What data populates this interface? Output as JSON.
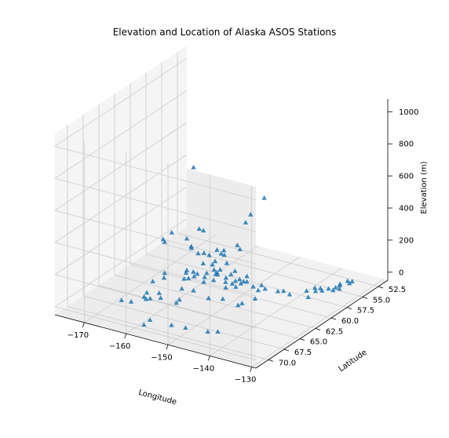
{
  "chart_data": {
    "type": "scatter",
    "title": "Elevation and Location of Alaska ASOS Stations",
    "xlabel": "Longitude",
    "ylabel": "Latitude",
    "zlabel": "Elevation (m)",
    "xlim": [
      -177,
      -129
    ],
    "ylim": [
      51,
      72
    ],
    "zlim": [
      -50,
      1080
    ],
    "xticks": [
      -170,
      -160,
      -150,
      -140,
      -130
    ],
    "yticks": [
      52.5,
      55.0,
      57.5,
      60.0,
      62.5,
      65.0,
      67.5,
      70.0
    ],
    "zticks": [
      0,
      200,
      400,
      600,
      800,
      1000
    ],
    "xtick_labels": [
      "−170",
      "−160",
      "−150",
      "−140",
      "−130"
    ],
    "ytick_labels": [
      "52.5",
      "55.0",
      "57.5",
      "60.0",
      "62.5",
      "65.0",
      "67.5",
      "70.0"
    ],
    "ztick_labels": [
      "0",
      "200",
      "400",
      "600",
      "800",
      "1000"
    ],
    "marker": "triangle",
    "color": "#1f77b4",
    "grid": true,
    "legend": "none",
    "points": [
      [
        -175.0,
        56.1,
        20
      ],
      [
        -173.9,
        56.6,
        25
      ],
      [
        -172.8,
        56.2,
        80
      ],
      [
        -172.1,
        52.3,
        6
      ],
      [
        -170.8,
        52.5,
        10
      ],
      [
        -169.5,
        56.0,
        60
      ],
      [
        -165.2,
        62.5,
        15
      ],
      [
        -168.0,
        56.3,
        30
      ],
      [
        -166.3,
        57.4,
        60
      ],
      [
        -165.0,
        57.2,
        30
      ],
      [
        -163.5,
        55.2,
        10
      ],
      [
        -162.0,
        55.1,
        15
      ],
      [
        -161.0,
        56.2,
        30
      ],
      [
        -162.0,
        58.4,
        20
      ],
      [
        -160.5,
        57.5,
        20
      ],
      [
        -159.5,
        58.6,
        35
      ],
      [
        -162.5,
        60.8,
        20
      ],
      [
        -158.0,
        57.3,
        20
      ],
      [
        -157.5,
        58.7,
        20
      ],
      [
        -156.9,
        59.8,
        25
      ],
      [
        -155.0,
        58.0,
        10
      ],
      [
        -154.0,
        59.3,
        30
      ],
      [
        -151.5,
        59.6,
        25
      ],
      [
        -150.0,
        60.4,
        30
      ],
      [
        -149.0,
        60.1,
        40
      ],
      [
        -149.2,
        60.5,
        50
      ],
      [
        -147.5,
        60.1,
        20
      ],
      [
        -146.4,
        59.5,
        20
      ],
      [
        -145.7,
        60.5,
        20
      ],
      [
        -144.5,
        60.2,
        30
      ],
      [
        -142.5,
        59.5,
        10
      ],
      [
        -141.0,
        59.6,
        25
      ],
      [
        -139.7,
        59.5,
        10
      ],
      [
        -137.3,
        58.4,
        20
      ],
      [
        -136.2,
        57.8,
        30
      ],
      [
        -135.8,
        57.2,
        15
      ],
      [
        -134.5,
        57.8,
        25
      ],
      [
        -134.3,
        56.9,
        15
      ],
      [
        -133.2,
        56.5,
        20
      ],
      [
        -132.6,
        56.3,
        10
      ],
      [
        -132.0,
        55.4,
        40
      ],
      [
        -131.7,
        55.3,
        25
      ],
      [
        -133.5,
        55.6,
        15
      ],
      [
        -133.0,
        56.0,
        20
      ],
      [
        -131.5,
        55.0,
        30
      ],
      [
        -135.4,
        59.4,
        20
      ],
      [
        -135.3,
        58.3,
        30
      ],
      [
        -132.9,
        57.1,
        20
      ],
      [
        -166.5,
        68.4,
        20
      ],
      [
        -164.5,
        68.2,
        20
      ],
      [
        -163.5,
        66.8,
        20
      ],
      [
        -162.6,
        67.1,
        20
      ],
      [
        -161.7,
        65.6,
        25
      ],
      [
        -161.5,
        60.3,
        20
      ],
      [
        -158.5,
        59.0,
        20
      ],
      [
        -160.0,
        66.5,
        30
      ],
      [
        -157.0,
        70.2,
        10
      ],
      [
        -156.8,
        71.3,
        10
      ],
      [
        -155.5,
        66.5,
        50
      ],
      [
        -154.0,
        68.0,
        80
      ],
      [
        -152.0,
        70.1,
        10
      ],
      [
        -150.5,
        65.2,
        60
      ],
      [
        -148.5,
        70.2,
        20
      ],
      [
        -147.0,
        64.8,
        140
      ],
      [
        -146.0,
        65.5,
        200
      ],
      [
        -145.0,
        66.6,
        130
      ],
      [
        -143.5,
        70.0,
        25
      ],
      [
        -142.0,
        69.4,
        20
      ],
      [
        -141.0,
        66.2,
        120
      ],
      [
        -143.0,
        64.1,
        220
      ],
      [
        -145.6,
        63.9,
        390
      ],
      [
        -149.0,
        63.7,
        300
      ],
      [
        -150.7,
        62.3,
        110
      ],
      [
        -152.0,
        62.9,
        150
      ],
      [
        -155.6,
        62.1,
        100
      ],
      [
        -153.0,
        64.3,
        120
      ],
      [
        -157.5,
        64.8,
        60
      ],
      [
        -158.6,
        63.0,
        70
      ],
      [
        -159.8,
        61.3,
        30
      ],
      [
        -157.0,
        61.5,
        50
      ],
      [
        -154.2,
        61.3,
        80
      ],
      [
        -151.0,
        61.1,
        40
      ],
      [
        -149.5,
        61.6,
        80
      ],
      [
        -147.8,
        62.0,
        300
      ],
      [
        -146.3,
        62.1,
        480
      ],
      [
        -144.2,
        62.7,
        560
      ],
      [
        -142.0,
        62.0,
        660
      ],
      [
        -148.9,
        67.0,
        400
      ],
      [
        -145.4,
        68.5,
        450
      ],
      [
        -149.6,
        68.2,
        960
      ],
      [
        -150.0,
        61.2,
        30
      ],
      [
        -159.5,
        61.0,
        40
      ],
      [
        -153.8,
        65.4,
        90
      ],
      [
        -141.2,
        64.0,
        90
      ],
      [
        -144.5,
        64.5,
        40
      ],
      [
        -161.3,
        61.9,
        20
      ],
      [
        -166.1,
        61.8,
        20
      ],
      [
        -163.3,
        66.5,
        40
      ],
      [
        -160.4,
        67.9,
        60
      ],
      [
        -165.8,
        63.9,
        25
      ],
      [
        -151.5,
        68.0,
        300
      ],
      [
        -155.9,
        60.8,
        20
      ]
    ]
  }
}
